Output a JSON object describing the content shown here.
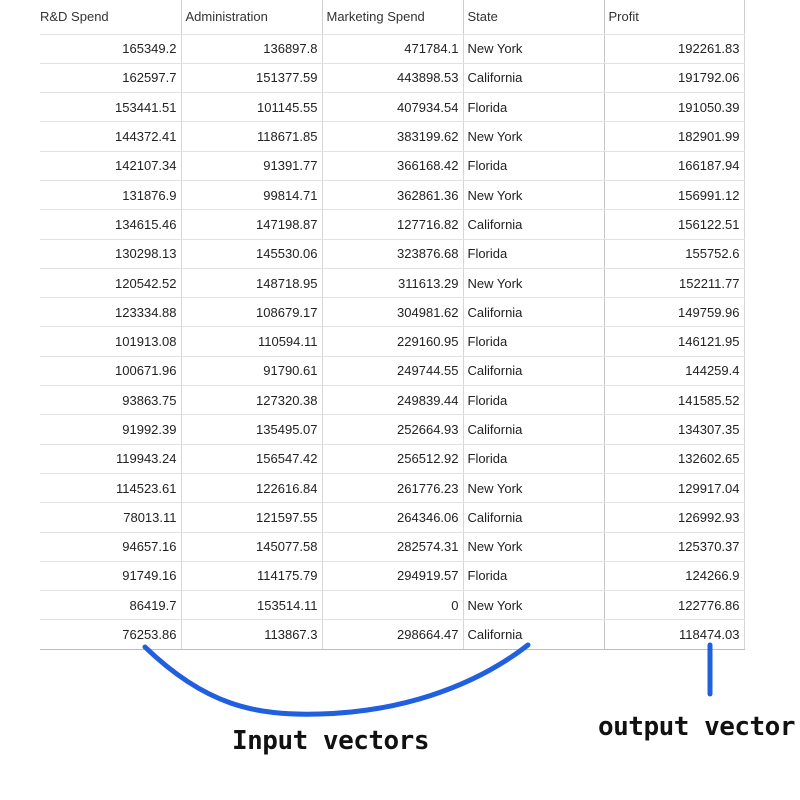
{
  "table": {
    "headers": [
      "R&D Spend",
      "Administration",
      "Marketing Spend",
      "State",
      "Profit"
    ],
    "rows": [
      [
        "165349.2",
        "136897.8",
        "471784.1",
        "New York",
        "192261.83"
      ],
      [
        "162597.7",
        "151377.59",
        "443898.53",
        "California",
        "191792.06"
      ],
      [
        "153441.51",
        "101145.55",
        "407934.54",
        "Florida",
        "191050.39"
      ],
      [
        "144372.41",
        "118671.85",
        "383199.62",
        "New York",
        "182901.99"
      ],
      [
        "142107.34",
        "91391.77",
        "366168.42",
        "Florida",
        "166187.94"
      ],
      [
        "131876.9",
        "99814.71",
        "362861.36",
        "New York",
        "156991.12"
      ],
      [
        "134615.46",
        "147198.87",
        "127716.82",
        "California",
        "156122.51"
      ],
      [
        "130298.13",
        "145530.06",
        "323876.68",
        "Florida",
        "155752.6"
      ],
      [
        "120542.52",
        "148718.95",
        "311613.29",
        "New York",
        "152211.77"
      ],
      [
        "123334.88",
        "108679.17",
        "304981.62",
        "California",
        "149759.96"
      ],
      [
        "101913.08",
        "110594.11",
        "229160.95",
        "Florida",
        "146121.95"
      ],
      [
        "100671.96",
        "91790.61",
        "249744.55",
        "California",
        "144259.4"
      ],
      [
        "93863.75",
        "127320.38",
        "249839.44",
        "Florida",
        "141585.52"
      ],
      [
        "91992.39",
        "135495.07",
        "252664.93",
        "California",
        "134307.35"
      ],
      [
        "119943.24",
        "156547.42",
        "256512.92",
        "Florida",
        "132602.65"
      ],
      [
        "114523.61",
        "122616.84",
        "261776.23",
        "New York",
        "129917.04"
      ],
      [
        "78013.11",
        "121597.55",
        "264346.06",
        "California",
        "126992.93"
      ],
      [
        "94657.16",
        "145077.58",
        "282574.31",
        "New York",
        "125370.37"
      ],
      [
        "91749.16",
        "114175.79",
        "294919.57",
        "Florida",
        "124266.9"
      ],
      [
        "86419.7",
        "153514.11",
        "0",
        "New York",
        "122776.86"
      ],
      [
        "76253.86",
        "113867.3",
        "298664.47",
        "California",
        "118474.03"
      ]
    ]
  },
  "annotations": {
    "input_label": "Input vectors",
    "output_label": "output vector",
    "stroke_color": "#1f5fe0"
  }
}
